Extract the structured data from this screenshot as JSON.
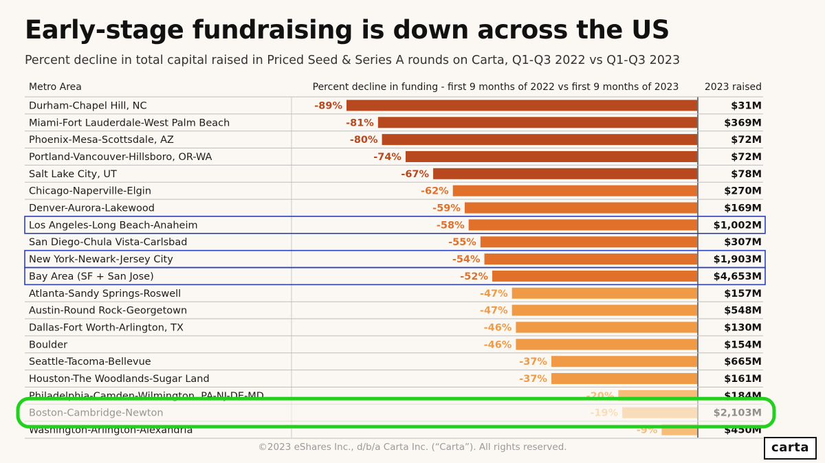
{
  "title": "Early-stage fundraising is down across the US",
  "subtitle": "Percent decline in total capital raised in Priced Seed & Series A rounds on Carta, Q1-Q3 2022 vs Q1-Q3 2023",
  "footer": "©2023 eShares Inc., d/b/a Carta Inc. (“Carta”). All rights reserved.",
  "logo": "carta",
  "colors": {
    "dark": "#b8481e",
    "mid": "#e0702a",
    "light": "#f19a45",
    "pale": "#f6bd78",
    "blue_box": "#2a3fb8",
    "green_box": "#22d11e"
  },
  "chart_data": {
    "type": "bar",
    "title": "Early-stage fundraising is down across the US",
    "column_headers": {
      "metro": "Metro Area",
      "decline": "Percent decline in funding - first 9 months of 2022 vs first 9 months of 2023",
      "raised": "2023 raised"
    },
    "categories": [
      "Durham-Chapel Hill, NC",
      "Miami-Fort Lauderdale-West Palm Beach",
      "Phoenix-Mesa-Scottsdale, AZ",
      "Portland-Vancouver-Hillsboro, OR-WA",
      "Salt Lake City, UT",
      "Chicago-Naperville-Elgin",
      "Denver-Aurora-Lakewood",
      "Los Angeles-Long Beach-Anaheim",
      "San Diego-Chula Vista-Carlsbad",
      "New York-Newark-Jersey City",
      "Bay Area (SF + San Jose)",
      "Atlanta-Sandy Springs-Roswell",
      "Austin-Round Rock-Georgetown",
      "Dallas-Fort Worth-Arlington, TX",
      "Boulder",
      "Seattle-Tacoma-Bellevue",
      "Houston-The Woodlands-Sugar Land",
      "Philadelphia-Camden-Wilmington, PA-NJ-DE-MD",
      "Boston-Cambridge-Newton",
      "Washington-Arlington-Alexandria"
    ],
    "values": [
      -89,
      -81,
      -80,
      -74,
      -67,
      -62,
      -59,
      -58,
      -55,
      -54,
      -52,
      -47,
      -47,
      -46,
      -46,
      -37,
      -37,
      -20,
      -19,
      -9
    ],
    "labels": [
      "-89%",
      "-81%",
      "-80%",
      "-74%",
      "-67%",
      "-62%",
      "-59%",
      "-58%",
      "-55%",
      "-54%",
      "-52%",
      "-47%",
      "-47%",
      "-46%",
      "-46%",
      "-37%",
      "-37%",
      "-20%",
      "-19%",
      "-9%"
    ],
    "raised_2023": [
      "$31M",
      "$369M",
      "$72M",
      "$72M",
      "$78M",
      "$270M",
      "$169M",
      "$1,002M",
      "$307M",
      "$1,903M",
      "$4,653M",
      "$157M",
      "$548M",
      "$130M",
      "$154M",
      "$665M",
      "$161M",
      "$184M",
      "$2,103M",
      "$450M"
    ],
    "blue_highlight_rows": [
      7,
      9,
      10
    ],
    "green_highlight_row": 18,
    "xlim": [
      -89,
      0
    ]
  }
}
